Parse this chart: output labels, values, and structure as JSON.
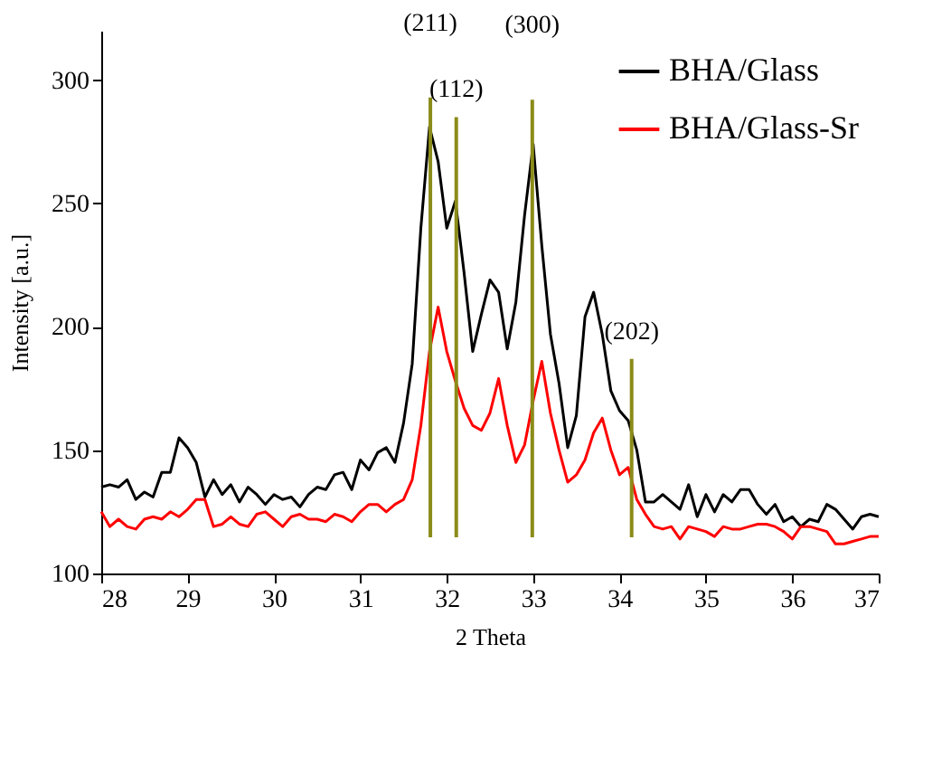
{
  "chart_data": {
    "type": "line",
    "xlabel": "2 Theta",
    "ylabel": "Intensity [a.u.]",
    "xlim": [
      28,
      37
    ],
    "xticks": [
      28,
      29,
      30,
      31,
      32,
      33,
      34,
      35,
      36,
      37
    ],
    "ylim": [
      100,
      320
    ],
    "yticks": [
      100,
      150,
      200,
      250,
      300
    ],
    "grid": false,
    "legend": "top right",
    "x": [
      28.0,
      28.1,
      28.2,
      28.3,
      28.4,
      28.5,
      28.6,
      28.7,
      28.8,
      28.9,
      29.0,
      29.1,
      29.2,
      29.3,
      29.4,
      29.5,
      29.6,
      29.7,
      29.8,
      29.9,
      30.0,
      30.1,
      30.2,
      30.3,
      30.4,
      30.5,
      30.6,
      30.7,
      30.8,
      30.9,
      31.0,
      31.1,
      31.2,
      31.3,
      31.4,
      31.5,
      31.6,
      31.7,
      31.8,
      31.9,
      32.0,
      32.1,
      32.2,
      32.3,
      32.4,
      32.5,
      32.6,
      32.7,
      32.8,
      32.9,
      33.0,
      33.1,
      33.2,
      33.3,
      33.4,
      33.5,
      33.6,
      33.7,
      33.8,
      33.9,
      34.0,
      34.1,
      34.2,
      34.3,
      34.4,
      34.5,
      34.6,
      34.7,
      34.8,
      34.9,
      35.0,
      35.1,
      35.2,
      35.3,
      35.4,
      35.5,
      35.6,
      35.7,
      35.8,
      35.9,
      36.0,
      36.1,
      36.2,
      36.3,
      36.4,
      36.5,
      36.6,
      36.7,
      36.8,
      36.9,
      37.0
    ],
    "series": [
      {
        "name": "BHA/Glass",
        "color": "#000000",
        "values": [
          135,
          136,
          135,
          138,
          130,
          133,
          131,
          141,
          141,
          155,
          151,
          145,
          131,
          138,
          132,
          136,
          129,
          135,
          132,
          128,
          132,
          130,
          131,
          127,
          132,
          135,
          134,
          140,
          141,
          134,
          146,
          142,
          149,
          151,
          145,
          161,
          185,
          240,
          281,
          267,
          240,
          251,
          222,
          190,
          205,
          219,
          214,
          191,
          210,
          245,
          274,
          233,
          197,
          177,
          151,
          164,
          204,
          214,
          197,
          174,
          166,
          162,
          150,
          129,
          129,
          132,
          129,
          126,
          136,
          123,
          132,
          125,
          132,
          129,
          134,
          134,
          128,
          124,
          128,
          121,
          123,
          119,
          122,
          121,
          128,
          126,
          122,
          118,
          123,
          124,
          123
        ]
      },
      {
        "name": "BHA/Glass-Sr",
        "color": "#ff0000",
        "values": [
          125,
          119,
          122,
          119,
          118,
          122,
          123,
          122,
          125,
          123,
          126,
          130,
          130,
          119,
          120,
          123,
          120,
          119,
          124,
          125,
          122,
          119,
          123,
          124,
          122,
          122,
          121,
          124,
          123,
          121,
          125,
          128,
          128,
          125,
          128,
          130,
          138,
          160,
          190,
          208,
          190,
          178,
          167,
          160,
          158,
          165,
          179,
          160,
          145,
          152,
          170,
          186,
          165,
          150,
          137,
          140,
          146,
          157,
          163,
          150,
          140,
          143,
          130,
          124,
          119,
          118,
          119,
          114,
          119,
          118,
          117,
          115,
          119,
          118,
          118,
          119,
          120,
          120,
          119,
          117,
          114,
          119,
          119,
          118,
          117,
          112,
          112,
          113,
          114,
          115,
          115
        ]
      }
    ],
    "ref_lines": [
      {
        "axis": "x",
        "value": 31.81,
        "color": "#8b8b1a"
      },
      {
        "axis": "x",
        "value": 32.11,
        "color": "#8b8b1a"
      },
      {
        "axis": "x",
        "value": 32.99,
        "color": "#8b8b1a"
      },
      {
        "axis": "x",
        "value": 34.14,
        "color": "#8b8b1a"
      }
    ],
    "annotations": [
      {
        "text": "(211)",
        "x": 31.81,
        "y": 293
      },
      {
        "text": "(112)",
        "x": 32.11,
        "y": 285
      },
      {
        "text": "(300)",
        "x": 32.99,
        "y": 292
      },
      {
        "text": "(202)",
        "x": 34.14,
        "y": 187
      }
    ]
  }
}
